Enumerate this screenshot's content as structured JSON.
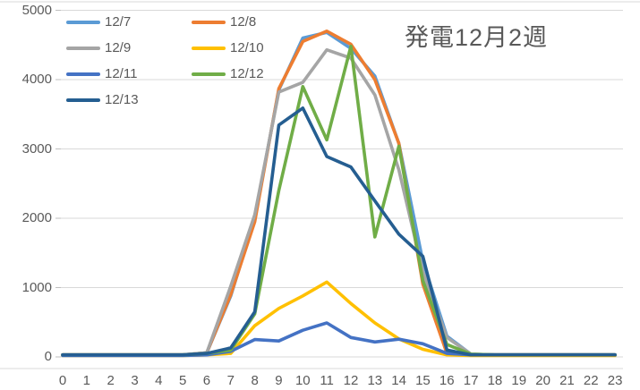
{
  "title": "発電12月2週",
  "y_axis": {
    "ticks": [
      "5000",
      "4000",
      "3000",
      "2000",
      "1000",
      "0"
    ],
    "values": [
      5000,
      4000,
      3000,
      2000,
      1000,
      0
    ]
  },
  "x_axis": {
    "ticks": [
      "0",
      "1",
      "2",
      "3",
      "4",
      "5",
      "6",
      "7",
      "8",
      "9",
      "10",
      "11",
      "12",
      "13",
      "14",
      "15",
      "16",
      "17",
      "18",
      "19",
      "20",
      "21",
      "22",
      "23"
    ]
  },
  "colors": {
    "grid": "#D9D9D9",
    "axis_text": "#595959",
    "tick": "#BFBFBF",
    "background": "#FFFFFF"
  },
  "chart_data": {
    "type": "line",
    "title": "発電12月2週",
    "xlabel": "",
    "ylabel": "",
    "x": [
      0,
      1,
      2,
      3,
      4,
      5,
      6,
      7,
      8,
      9,
      10,
      11,
      12,
      13,
      14,
      15,
      16,
      17,
      18,
      19,
      20,
      21,
      22,
      23
    ],
    "ylim": [
      0,
      5000
    ],
    "ytick_interval": 1000,
    "grid": "horizontal",
    "legend_position": "top-left",
    "series": [
      {
        "name": "12/7",
        "color": "#5B9BD5",
        "values": [
          30,
          30,
          30,
          30,
          30,
          30,
          60,
          880,
          2000,
          3850,
          4600,
          4680,
          4450,
          4050,
          3080,
          1380,
          300,
          40,
          30,
          30,
          30,
          30,
          30,
          30
        ]
      },
      {
        "name": "12/8",
        "color": "#ED7D31",
        "values": [
          30,
          30,
          30,
          30,
          30,
          30,
          60,
          900,
          1950,
          3870,
          4550,
          4700,
          4510,
          4000,
          3080,
          1050,
          50,
          30,
          30,
          30,
          30,
          30,
          30,
          30
        ]
      },
      {
        "name": "12/9",
        "color": "#A5A5A5",
        "values": [
          30,
          30,
          30,
          30,
          30,
          30,
          60,
          1020,
          2050,
          3820,
          3960,
          4430,
          4310,
          3780,
          2700,
          1230,
          280,
          40,
          30,
          30,
          30,
          30,
          30,
          30
        ]
      },
      {
        "name": "12/10",
        "color": "#FFC000",
        "values": [
          20,
          20,
          20,
          20,
          20,
          20,
          30,
          50,
          450,
          700,
          880,
          1080,
          770,
          490,
          260,
          110,
          30,
          20,
          20,
          20,
          20,
          20,
          20,
          20
        ]
      },
      {
        "name": "12/11",
        "color": "#4472C4",
        "values": [
          20,
          20,
          20,
          20,
          20,
          20,
          30,
          80,
          250,
          230,
          385,
          490,
          280,
          215,
          255,
          190,
          50,
          30,
          30,
          30,
          30,
          30,
          30,
          30
        ]
      },
      {
        "name": "12/12",
        "color": "#70AD47",
        "values": [
          30,
          30,
          30,
          30,
          30,
          30,
          50,
          100,
          620,
          2400,
          3900,
          3130,
          4480,
          1730,
          3040,
          1100,
          180,
          40,
          30,
          30,
          30,
          30,
          30,
          30
        ]
      },
      {
        "name": "12/13",
        "color": "#255E91",
        "values": [
          30,
          30,
          30,
          30,
          30,
          30,
          50,
          130,
          650,
          3345,
          3590,
          2890,
          2740,
          2250,
          1770,
          1450,
          100,
          30,
          30,
          30,
          30,
          30,
          30,
          30
        ]
      }
    ]
  }
}
